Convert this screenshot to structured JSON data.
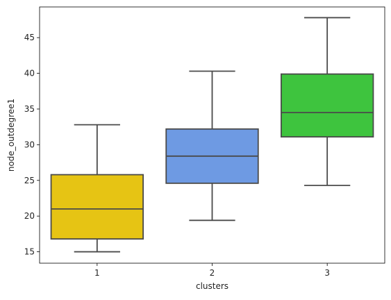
{
  "chart_data": {
    "type": "box",
    "title": "",
    "xlabel": "clusters",
    "ylabel": "node_outdegree1",
    "ylim": [
      13.4,
      49.3
    ],
    "yticks": [
      15,
      20,
      25,
      30,
      35,
      40,
      45
    ],
    "categories": [
      "1",
      "2",
      "3"
    ],
    "series": [
      {
        "category": "1",
        "color": "#e6c414",
        "stats": {
          "whislo": 15.0,
          "q1": 16.8,
          "med": 21.0,
          "q3": 25.8,
          "whishi": 32.8
        }
      },
      {
        "category": "2",
        "color": "#6e9ae3",
        "stats": {
          "whislo": 19.4,
          "q1": 24.6,
          "med": 28.4,
          "q3": 32.2,
          "whishi": 40.3
        }
      },
      {
        "category": "3",
        "color": "#3ec43e",
        "stats": {
          "whislo": 24.3,
          "q1": 31.1,
          "med": 34.5,
          "q3": 39.9,
          "whishi": 47.8
        }
      }
    ],
    "grid": false,
    "legend": "none",
    "line_color": "#4a4a4a"
  }
}
